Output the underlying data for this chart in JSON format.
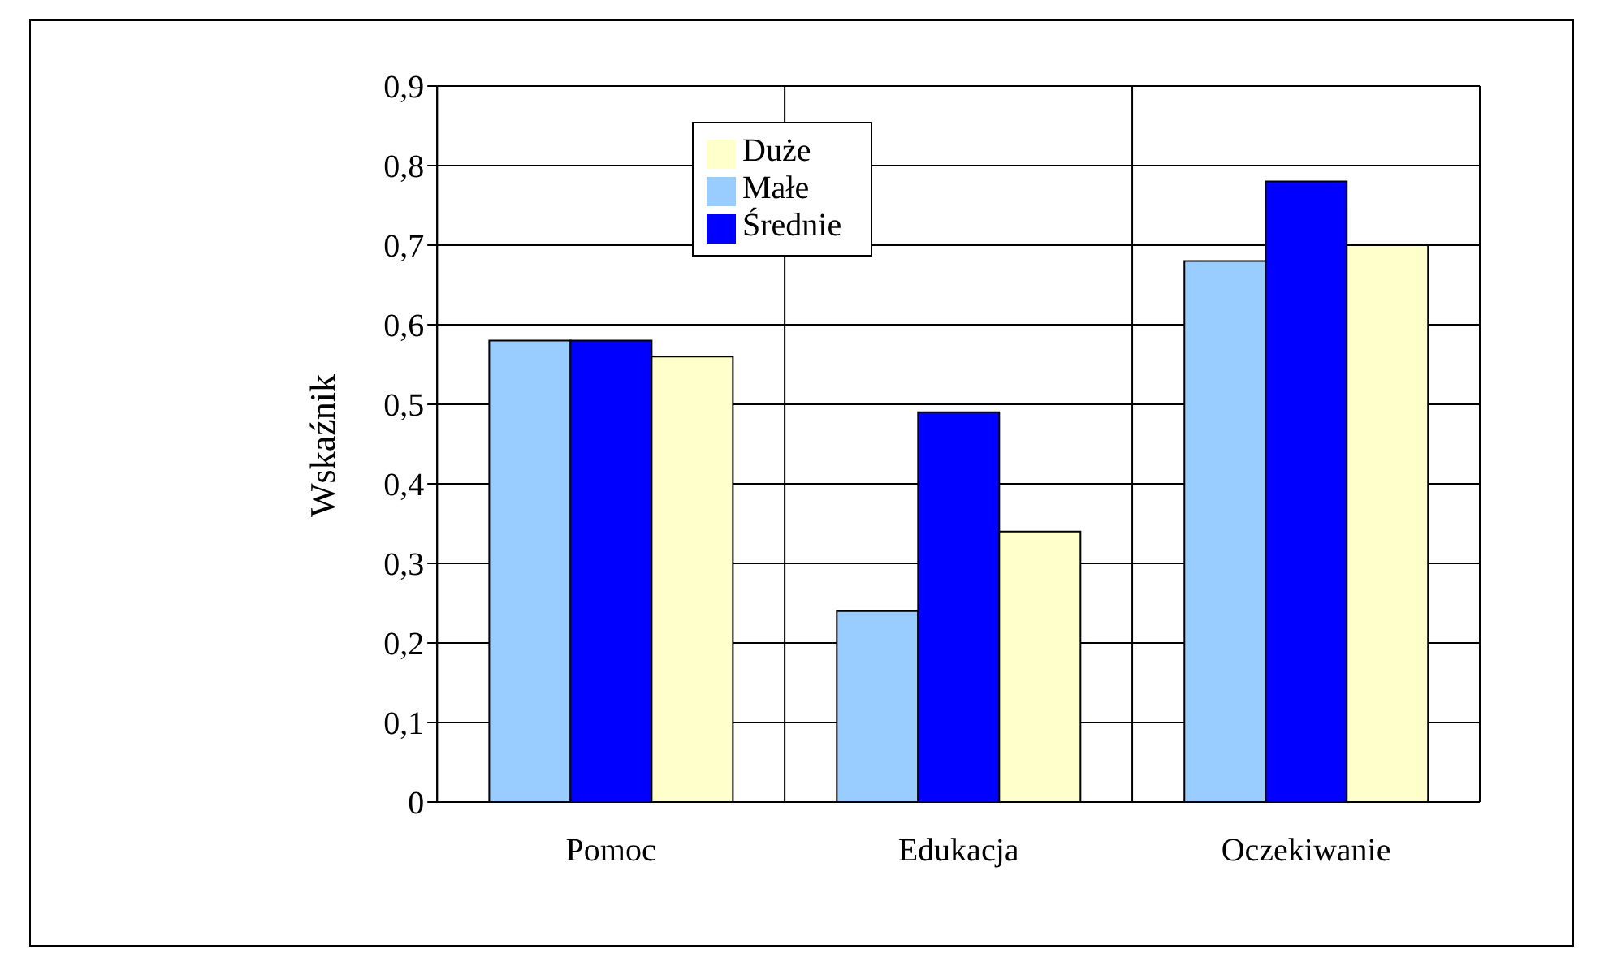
{
  "chart_data": {
    "type": "bar",
    "ylabel": "Wskaźnik",
    "categories": [
      "Pomoc",
      "Edukacja",
      "Oczekiwanie"
    ],
    "series": [
      {
        "name": "Małe",
        "color": "#99ccff",
        "values": [
          0.58,
          0.24,
          0.68
        ]
      },
      {
        "name": "Średnie",
        "color": "#0000ff",
        "values": [
          0.58,
          0.49,
          0.78
        ]
      },
      {
        "name": "Duże",
        "color": "#ffffcc",
        "values": [
          0.56,
          0.34,
          0.7
        ]
      }
    ],
    "ylim": [
      0,
      0.9
    ],
    "yticks": [
      0,
      {
        "value": 0.1,
        "label": "0,1"
      },
      {
        "value": 0.2,
        "label": "0,2"
      },
      {
        "value": 0.3,
        "label": "0,3"
      },
      {
        "value": 0.4,
        "label": "0,4"
      },
      {
        "value": 0.5,
        "label": "0,5"
      },
      {
        "value": 0.6,
        "label": "0,6"
      },
      {
        "value": 0.7,
        "label": "0,7"
      },
      {
        "value": 0.8,
        "label": "0,8"
      },
      {
        "value": 0.9,
        "label": "0,9"
      }
    ],
    "grid": true,
    "legend": "top"
  }
}
